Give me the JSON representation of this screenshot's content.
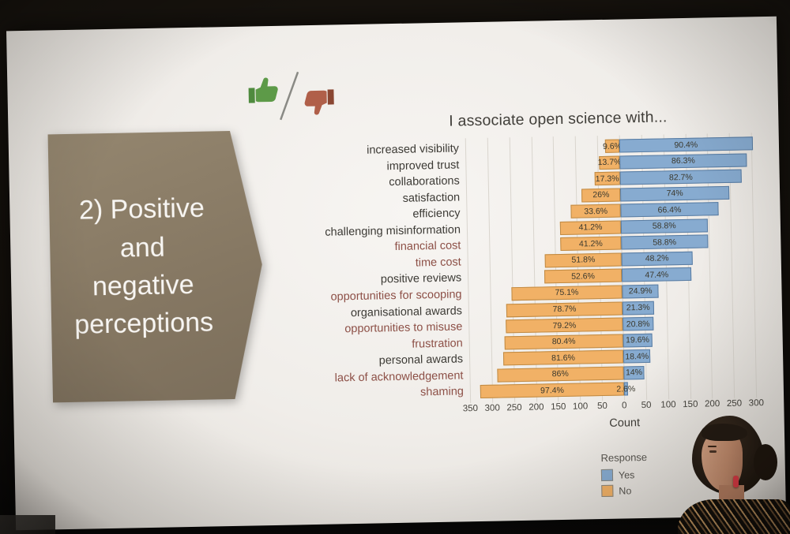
{
  "slide": {
    "banner": {
      "lines": [
        "2) Positive",
        "and",
        "negative",
        "perceptions"
      ],
      "bg_color": "#887a66",
      "text_color": "#f8f6f3"
    },
    "icons": {
      "thumbs_up_color": "#5d9a48",
      "thumbs_down_color": "#b05f49"
    }
  },
  "chart_data": {
    "type": "bar",
    "variant": "diverging-horizontal-stacked",
    "title": "I associate open science with...",
    "xlabel": "Count",
    "legend": {
      "title": "Response",
      "items": [
        {
          "label": "Yes",
          "color": "#87abd0"
        },
        {
          "label": "No",
          "color": "#f1b166"
        }
      ]
    },
    "axis": {
      "min": -350,
      "max": 300,
      "step": 50,
      "tick_labels": [
        "350",
        "300",
        "250",
        "200",
        "150",
        "100",
        "50",
        "0",
        "50",
        "100",
        "150",
        "200",
        "250",
        "300"
      ],
      "grid": true
    },
    "total_responses_estimate": 335,
    "categories": [
      "increased visibility",
      "improved trust",
      "collaborations",
      "satisfaction",
      "efficiency",
      "challenging misinformation",
      "financial cost",
      "time cost",
      "positive reviews",
      "opportunities for scooping",
      "organisational awards",
      "opportunities to misuse",
      "frustration",
      "personal awards",
      "lack of acknowledgement",
      "shaming"
    ],
    "category_sentiment": [
      "positive",
      "positive",
      "positive",
      "positive",
      "positive",
      "positive",
      "negative",
      "negative",
      "positive",
      "negative",
      "positive",
      "negative",
      "negative",
      "positive",
      "negative",
      "negative"
    ],
    "series": [
      {
        "name": "Yes",
        "color": "#87abd0",
        "border_color": "#5a7da3",
        "pct": [
          90.4,
          86.3,
          82.7,
          74,
          66.4,
          58.8,
          58.8,
          48.2,
          47.4,
          24.9,
          21.3,
          20.8,
          19.6,
          18.4,
          14,
          2.6
        ],
        "labels": [
          "90.4%",
          "86.3%",
          "82.7%",
          "74%",
          "66.4%",
          "58.8%",
          "58.8%",
          "48.2%",
          "47.4%",
          "24.9%",
          "21.3%",
          "20.8%",
          "19.6%",
          "18.4%",
          "14%",
          "2.6%"
        ],
        "counts_est": [
          303,
          289,
          277,
          248,
          222,
          197,
          197,
          161,
          159,
          83,
          71,
          70,
          66,
          62,
          47,
          9
        ]
      },
      {
        "name": "No",
        "color": "#f1b166",
        "border_color": "#c08a43",
        "pct": [
          9.6,
          13.7,
          17.3,
          26,
          33.6,
          41.2,
          41.2,
          51.8,
          52.6,
          75.1,
          78.7,
          79.2,
          80.4,
          81.6,
          86,
          97.4
        ],
        "labels": [
          "9.6%",
          "13.7%",
          "17.3%",
          "26%",
          "33.6%",
          "41.2%",
          "41.2%",
          "51.8%",
          "52.6%",
          "75.1%",
          "78.7%",
          "79.2%",
          "80.4%",
          "81.6%",
          "86%",
          "97.4%"
        ],
        "counts_est": [
          32,
          46,
          58,
          87,
          113,
          138,
          138,
          174,
          176,
          252,
          264,
          265,
          269,
          273,
          288,
          326
        ]
      }
    ]
  },
  "colors": {
    "label_positive": "#3d3b36",
    "label_negative": "#8d5047"
  }
}
